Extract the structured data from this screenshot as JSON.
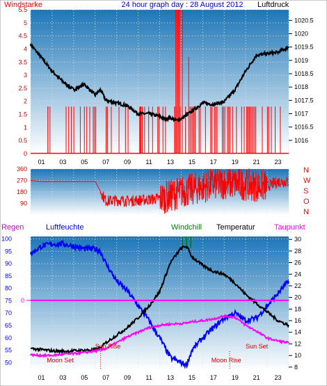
{
  "header": {
    "title": "24 hour graph day : 28 August 2012",
    "left_label": "Windstarke",
    "right_label": "Luftdruck"
  },
  "colors": {
    "panel_top": "#1d76b8",
    "panel_bottom": "#ffffff",
    "wind": "#ff0000",
    "pressure": "#000000",
    "humidity": "#0000ff",
    "temperature": "#000000",
    "dewpoint": "#ff00ff",
    "windchill": "#008000",
    "rain": "#ff00ff"
  },
  "bottom_legend": {
    "regen": "Regen",
    "luftfeuchte": "Luftfeuchte",
    "windchill": "Windchill",
    "temperatur": "Temperatur",
    "taupunkt": "Taupunkt"
  },
  "annotations": {
    "sun_rise": "Sun Rise",
    "moon_set": "Moon Set",
    "sun_set": "Sun Set",
    "moon_rise": "Moon Rise",
    "regen_value": "0"
  },
  "chart_data": [
    {
      "type": "line",
      "title": "24 hour graph day : 28 August 2012",
      "x_ticks": [
        "01",
        "03",
        "05",
        "07",
        "09",
        "11",
        "13",
        "15",
        "17",
        "19",
        "21",
        "23"
      ],
      "xlim": [
        0,
        24
      ],
      "left_axis": {
        "label": "Windstarke",
        "ticks": [
          "0",
          "0.5",
          "1",
          "1.5",
          "2",
          "2.5",
          "3",
          "3.5",
          "4",
          "4.5",
          "5",
          "5.5"
        ],
        "ylim": [
          0,
          5.5
        ]
      },
      "right_axis": {
        "label": "Luftdruck",
        "ticks": [
          "1016",
          "1016.5",
          "1017",
          "1017.5",
          "1018",
          "1018.5",
          "1019",
          "1019.5",
          "1020",
          "1020.5"
        ],
        "ylim": [
          1015.5,
          1020.9
        ]
      },
      "series": [
        {
          "name": "Luftdruck",
          "axis": "right",
          "x": [
            0,
            1,
            2,
            3,
            4,
            5,
            6,
            6.5,
            7,
            8,
            9,
            10,
            11,
            12,
            12.5,
            13,
            13.5,
            14,
            15,
            16,
            17,
            18,
            19,
            20,
            21,
            22,
            23,
            24
          ],
          "values": [
            1019.6,
            1019.1,
            1018.6,
            1018.2,
            1017.9,
            1018.1,
            1017.7,
            1017.9,
            1017.5,
            1017.4,
            1017.3,
            1017.0,
            1017.0,
            1016.9,
            1016.8,
            1016.85,
            1016.75,
            1016.8,
            1017.1,
            1017.4,
            1017.35,
            1017.45,
            1017.9,
            1018.6,
            1019.2,
            1019.25,
            1019.3,
            1019.5
          ]
        },
        {
          "name": "Windstarke",
          "axis": "left",
          "note": "gusts 0 to 1.8, peak 5.5 around 13:30-14:00"
        }
      ]
    },
    {
      "type": "line",
      "y_ticks": [
        "90",
        "180",
        "270",
        "360"
      ],
      "ylim": [
        0,
        360
      ],
      "compass_labels": [
        "N",
        "W",
        "S",
        "O",
        "N"
      ],
      "series": [
        {
          "name": "Windrichtung",
          "x": [
            0,
            1,
            2,
            3,
            4,
            5,
            6,
            7,
            8,
            9,
            10,
            11,
            12,
            13,
            14,
            15,
            16,
            17,
            18,
            19,
            20,
            21,
            22,
            23,
            24
          ],
          "values": [
            270,
            262,
            262,
            262,
            262,
            262,
            262,
            110,
            115,
            110,
            115,
            120,
            130,
            150,
            180,
            200,
            220,
            240,
            250,
            245,
            240,
            230,
            225,
            260,
            260
          ]
        }
      ]
    },
    {
      "type": "line",
      "x_ticks": [
        "01",
        "03",
        "05",
        "07",
        "09",
        "11",
        "13",
        "15",
        "17",
        "19",
        "21",
        "23"
      ],
      "xlim": [
        0,
        24
      ],
      "left_axis": {
        "ticks": [
          "50",
          "55",
          "60",
          "65",
          "70",
          "75",
          "80",
          "85",
          "90",
          "95",
          "100"
        ],
        "ylim": [
          47,
          101
        ]
      },
      "right_axis": {
        "ticks": [
          "8",
          "10",
          "12",
          "14",
          "16",
          "18",
          "20",
          "22",
          "24",
          "26",
          "28",
          "30"
        ],
        "ylim": [
          7.5,
          30.5
        ]
      },
      "series": [
        {
          "name": "Luftfeuchte",
          "axis": "left",
          "x": [
            0,
            1,
            2,
            3,
            4,
            5,
            6,
            6.5,
            7,
            8,
            9,
            10,
            11,
            12,
            13,
            14,
            14.5,
            15,
            16,
            17,
            18,
            19,
            20,
            21,
            22,
            23,
            24
          ],
          "values": [
            94,
            97,
            98,
            98,
            97,
            96,
            96,
            95,
            90,
            83,
            79,
            73,
            67,
            60,
            52,
            50,
            49,
            55,
            60,
            64,
            68,
            70,
            67,
            68,
            73,
            78,
            83
          ]
        },
        {
          "name": "Temperatur",
          "axis": "right",
          "x": [
            0,
            1,
            2,
            3,
            4,
            5,
            6,
            6.5,
            7,
            8,
            9,
            10,
            11,
            12,
            13,
            14,
            14.5,
            15,
            16,
            17,
            18,
            19,
            20,
            21,
            22,
            23,
            24
          ],
          "values": [
            11.2,
            11.0,
            10.8,
            10.7,
            10.8,
            10.9,
            11.0,
            11.3,
            12.2,
            13.5,
            14.8,
            16.5,
            18.5,
            21.0,
            26.0,
            28.5,
            28.8,
            27.0,
            25.5,
            24.5,
            24.0,
            22.5,
            20.5,
            19.0,
            17.5,
            16.0,
            15.2
          ]
        },
        {
          "name": "Taupunkt",
          "axis": "right",
          "x": [
            0,
            1,
            2,
            3,
            4,
            5,
            6,
            6.5,
            7,
            8,
            9,
            10,
            11,
            12,
            13,
            14,
            14.5,
            15,
            16,
            17,
            18,
            19,
            20,
            21,
            22,
            23,
            24
          ],
          "values": [
            10.1,
            10.0,
            10.0,
            10.2,
            10.3,
            10.5,
            10.8,
            10.9,
            11.2,
            12.2,
            13.2,
            14.0,
            14.8,
            15.2,
            15.4,
            15.5,
            15.6,
            15.8,
            16.0,
            16.3,
            16.8,
            16.6,
            15.2,
            14.2,
            13.0,
            12.5,
            12.2
          ]
        },
        {
          "name": "Windchill",
          "axis": "right",
          "note": "vertical markers near 14:00-15:00"
        },
        {
          "name": "Regen",
          "axis": "left",
          "value": 0
        }
      ],
      "events": [
        {
          "label": "Sun Rise",
          "time": 6.5
        },
        {
          "label": "Moon Set",
          "time": 3
        },
        {
          "label": "Sun Set",
          "time": 20.3
        },
        {
          "label": "Moon Rise",
          "time": 18.5
        }
      ]
    }
  ]
}
